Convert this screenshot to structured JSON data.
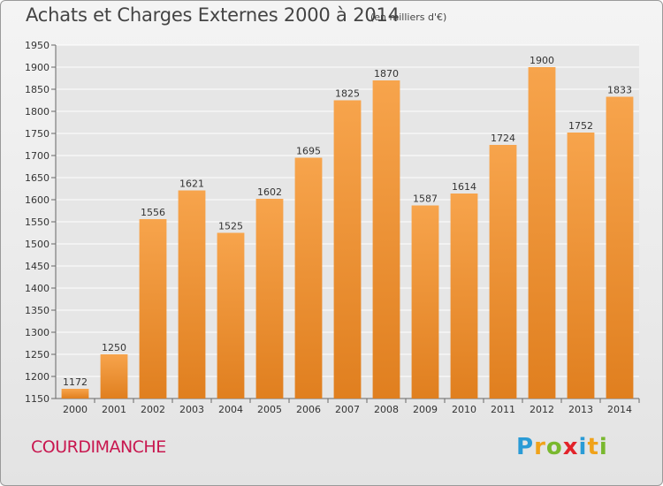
{
  "chart_data": {
    "type": "bar",
    "title": "Achats et Charges Externes 2000 à 2014",
    "subtitle": "(en milliers d'€)",
    "categories": [
      "2000",
      "2001",
      "2002",
      "2003",
      "2004",
      "2005",
      "2006",
      "2007",
      "2008",
      "2009",
      "2010",
      "2011",
      "2012",
      "2013",
      "2014"
    ],
    "values": [
      1172,
      1250,
      1556,
      1621,
      1525,
      1602,
      1695,
      1825,
      1870,
      1587,
      1614,
      1724,
      1900,
      1752,
      1833
    ],
    "ylim": [
      1150,
      1950
    ],
    "ystep": 50,
    "grid": true,
    "colors": {
      "bar_top": "#f7a44c",
      "bar_bottom": "#e07f1f",
      "grid": "#ffffff"
    }
  },
  "commune": "COURDIMANCHE",
  "logo": {
    "letters": [
      "P",
      "r",
      "o",
      "x",
      "i",
      "t",
      "i"
    ],
    "colors": [
      "#2a9bd6",
      "#f0a21a",
      "#79b82e",
      "#e2232a",
      "#2a9bd6",
      "#f0a21a",
      "#79b82e"
    ]
  }
}
